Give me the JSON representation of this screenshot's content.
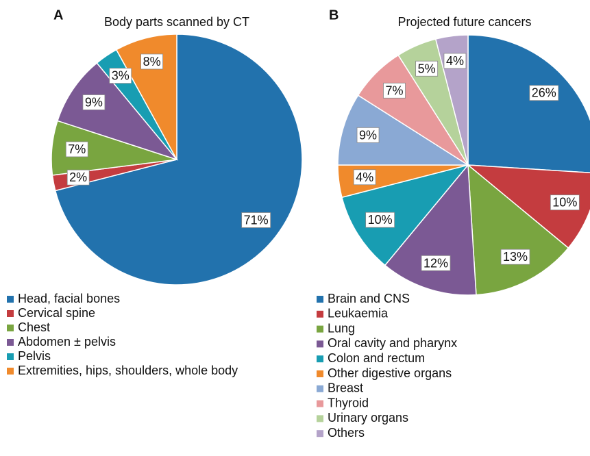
{
  "chart_data": [
    {
      "type": "pie",
      "panel": "A",
      "title": "Body parts scanned by CT",
      "categories": [
        "Head, facial bones",
        "Cervical spine",
        "Chest",
        "Abdomen ± pelvis",
        "Pelvis",
        "Extremities, hips, shoulders, whole body"
      ],
      "values": [
        71,
        2,
        7,
        9,
        3,
        8
      ],
      "value_labels": [
        "71%",
        "2%",
        "7%",
        "9%",
        "3%",
        "8%"
      ],
      "colors": [
        "#2272ad",
        "#c43c3f",
        "#79a540",
        "#7b5994",
        "#189db2",
        "#f08a2c"
      ]
    },
    {
      "type": "pie",
      "panel": "B",
      "title": "Projected future cancers",
      "categories": [
        "Brain and CNS",
        "Leukaemia",
        "Lung",
        "Oral cavity and pharynx",
        "Colon and rectum",
        "Other digestive organs",
        "Breast",
        "Thyroid",
        "Urinary organs",
        "Others"
      ],
      "values": [
        26,
        10,
        13,
        12,
        10,
        4,
        9,
        7,
        5,
        4
      ],
      "value_labels": [
        "26%",
        "10%",
        "13%",
        "12%",
        "10%",
        "4%",
        "9%",
        "7%",
        "5%",
        "4%"
      ],
      "colors": [
        "#2272ad",
        "#c43c3f",
        "#79a540",
        "#7b5994",
        "#189db2",
        "#f08a2c",
        "#8aa9d4",
        "#e8999b",
        "#b5d29b",
        "#b4a3c9"
      ]
    }
  ]
}
